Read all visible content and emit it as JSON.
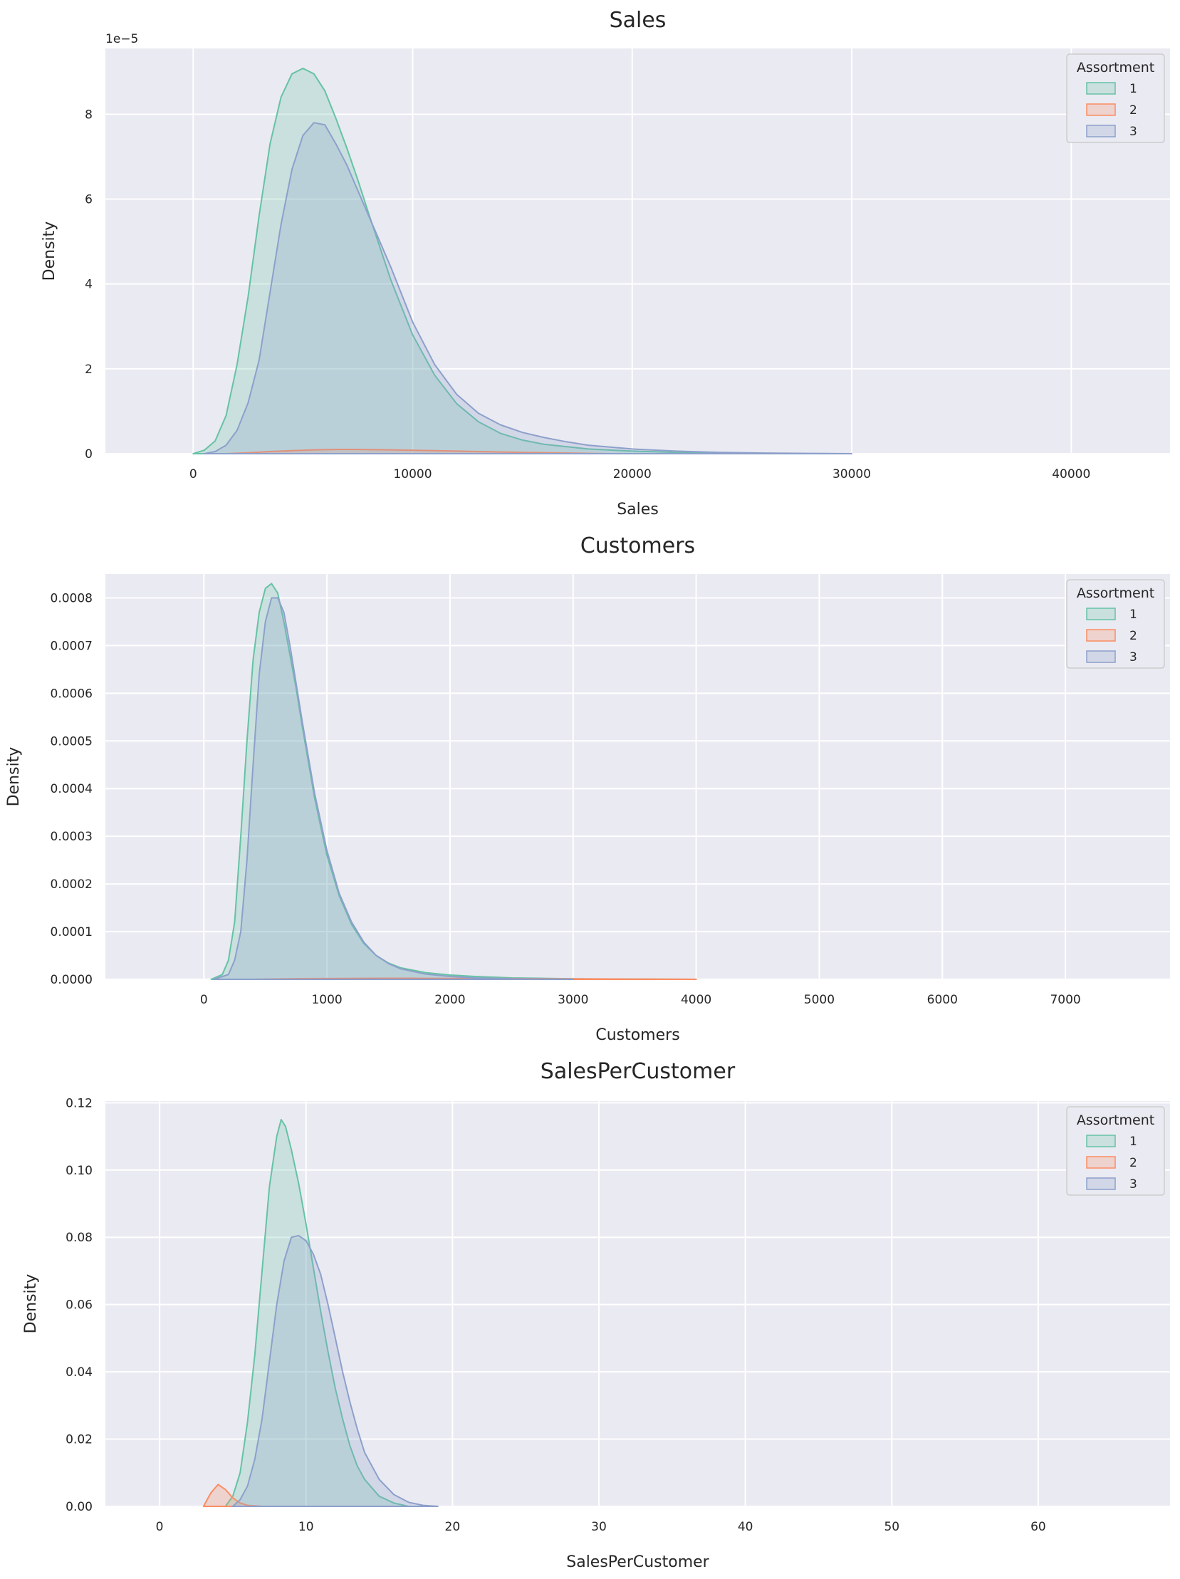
{
  "colors": {
    "1": "#66c2a5",
    "2": "#fc8d62",
    "3": "#8da0cb"
  },
  "chart_data": [
    {
      "type": "area",
      "title": "Sales",
      "xlabel": "Sales",
      "ylabel": "Density",
      "y_offset_label": "1e−5",
      "xlim": [
        -4000,
        44500
      ],
      "ylim": [
        0,
        9.55
      ],
      "xticks": [
        0,
        10000,
        20000,
        30000,
        40000
      ],
      "yticks": [
        0,
        2,
        4,
        6,
        8
      ],
      "ytick_labels": [
        "0",
        "2",
        "4",
        "6",
        "8"
      ],
      "legend": {
        "title": "Assortment",
        "position": "top-right"
      },
      "series": [
        {
          "name": "1",
          "x": [
            0,
            500,
            1000,
            1500,
            2000,
            2500,
            3000,
            3500,
            4000,
            4500,
            5000,
            5500,
            6000,
            6500,
            7000,
            7500,
            8000,
            9000,
            10000,
            11000,
            12000,
            13000,
            14000,
            15000,
            16000,
            18000,
            20000,
            22000,
            24000,
            26000,
            28000
          ],
          "y": [
            0,
            0.08,
            0.3,
            0.9,
            2.1,
            3.7,
            5.6,
            7.3,
            8.4,
            8.95,
            9.08,
            8.95,
            8.55,
            7.9,
            7.2,
            6.45,
            5.65,
            4.1,
            2.8,
            1.85,
            1.18,
            0.75,
            0.48,
            0.32,
            0.22,
            0.11,
            0.06,
            0.03,
            0.015,
            0.007,
            0
          ]
        },
        {
          "name": "2",
          "x": [
            1500,
            2500,
            3500,
            4500,
            5500,
            6500,
            7500,
            9000,
            11000,
            13000,
            15000,
            17000,
            19000
          ],
          "y": [
            0,
            0.02,
            0.05,
            0.07,
            0.09,
            0.1,
            0.1,
            0.09,
            0.07,
            0.05,
            0.03,
            0.015,
            0
          ]
        },
        {
          "name": "3",
          "x": [
            500,
            1000,
            1500,
            2000,
            2500,
            3000,
            3500,
            4000,
            4500,
            5000,
            5500,
            6000,
            6500,
            7000,
            7500,
            8000,
            9000,
            10000,
            11000,
            12000,
            13000,
            14000,
            15000,
            16000,
            17000,
            18000,
            20000,
            22000,
            24000,
            26000,
            28000,
            30000
          ],
          "y": [
            0,
            0.05,
            0.2,
            0.55,
            1.2,
            2.2,
            3.8,
            5.4,
            6.7,
            7.5,
            7.8,
            7.75,
            7.3,
            6.8,
            6.2,
            5.6,
            4.4,
            3.1,
            2.1,
            1.4,
            0.95,
            0.68,
            0.5,
            0.38,
            0.28,
            0.2,
            0.11,
            0.06,
            0.03,
            0.015,
            0.006,
            0
          ]
        }
      ]
    },
    {
      "type": "area",
      "title": "Customers",
      "xlabel": "Customers",
      "ylabel": "Density",
      "xlim": [
        -800,
        7850
      ],
      "ylim": [
        0,
        0.00085
      ],
      "xticks": [
        0,
        1000,
        2000,
        3000,
        4000,
        5000,
        6000,
        7000
      ],
      "yticks": [
        0,
        0.0001,
        0.0002,
        0.0003,
        0.0004,
        0.0005,
        0.0006,
        0.0007,
        0.0008
      ],
      "ytick_labels": [
        "0.0000",
        "0.0001",
        "0.0002",
        "0.0003",
        "0.0004",
        "0.0005",
        "0.0006",
        "0.0007",
        "0.0008"
      ],
      "legend": {
        "title": "Assortment",
        "position": "top-right"
      },
      "series": [
        {
          "name": "1",
          "x": [
            60,
            150,
            200,
            250,
            300,
            350,
            400,
            450,
            500,
            550,
            600,
            650,
            700,
            750,
            800,
            900,
            1000,
            1100,
            1200,
            1300,
            1400,
            1500,
            1600,
            1800,
            2000,
            2200,
            2500,
            3000,
            3500,
            4000
          ],
          "y": [
            0,
            1e-05,
            4e-05,
            0.00012,
            0.0003,
            0.0005,
            0.00067,
            0.00077,
            0.00082,
            0.00083,
            0.00081,
            0.00075,
            0.00068,
            0.00061,
            0.00053,
            0.00038,
            0.00026,
            0.000175,
            0.000115,
            7.5e-05,
            5e-05,
            3.4e-05,
            2.4e-05,
            1.4e-05,
            9e-06,
            6e-06,
            3e-06,
            1.2e-06,
            5e-07,
            0
          ]
        },
        {
          "name": "2",
          "x": [
            400,
            800,
            1200,
            1600,
            2000,
            2400,
            2800,
            3200,
            3600,
            4000
          ],
          "y": [
            0,
            1.5e-06,
            2e-06,
            2.2e-06,
            2e-06,
            1.7e-06,
            1.2e-06,
            7e-07,
            3e-07,
            0
          ]
        },
        {
          "name": "3",
          "x": [
            80,
            200,
            250,
            300,
            350,
            400,
            450,
            500,
            550,
            600,
            650,
            700,
            750,
            800,
            900,
            1000,
            1100,
            1200,
            1300,
            1400,
            1500,
            1600,
            1800,
            2000,
            2200,
            2500,
            3000
          ],
          "y": [
            0,
            1e-05,
            4e-05,
            0.0001,
            0.00025,
            0.00045,
            0.00064,
            0.00075,
            0.0008,
            0.0008,
            0.00077,
            0.0007,
            0.00062,
            0.00054,
            0.00039,
            0.00027,
            0.00018,
            0.00012,
            7.8e-05,
            5e-05,
            3.3e-05,
            2.2e-05,
            1.1e-05,
            6e-06,
            3e-06,
            1.2e-06,
            0
          ]
        }
      ]
    },
    {
      "type": "area",
      "title": "SalesPerCustomer",
      "xlabel": "SalesPerCustomer",
      "ylabel": "Density",
      "xlim": [
        -3.7,
        69.0
      ],
      "ylim": [
        0,
        0.1205
      ],
      "xticks": [
        0,
        10,
        20,
        30,
        40,
        50,
        60
      ],
      "yticks": [
        0,
        0.02,
        0.04,
        0.06,
        0.08,
        0.1,
        0.12
      ],
      "ytick_labels": [
        "0.00",
        "0.02",
        "0.04",
        "0.06",
        "0.08",
        "0.10",
        "0.12"
      ],
      "legend": {
        "title": "Assortment",
        "position": "top-right"
      },
      "series": [
        {
          "name": "1",
          "x": [
            4.5,
            5,
            5.5,
            6,
            6.5,
            7,
            7.5,
            8,
            8.3,
            8.6,
            9,
            9.5,
            10,
            10.5,
            11,
            11.5,
            12,
            12.5,
            13,
            13.5,
            14,
            15,
            16,
            17
          ],
          "y": [
            0,
            0.003,
            0.01,
            0.025,
            0.045,
            0.07,
            0.095,
            0.11,
            0.115,
            0.113,
            0.106,
            0.096,
            0.084,
            0.071,
            0.058,
            0.046,
            0.035,
            0.026,
            0.018,
            0.012,
            0.008,
            0.003,
            0.001,
            0
          ]
        },
        {
          "name": "2",
          "x": [
            3,
            3.5,
            4,
            4.5,
            5,
            5.5,
            6,
            7
          ],
          "y": [
            0,
            0.004,
            0.0065,
            0.005,
            0.0025,
            0.001,
            0.0003,
            0
          ]
        },
        {
          "name": "3",
          "x": [
            5,
            5.5,
            6,
            6.5,
            7,
            7.5,
            8,
            8.5,
            9,
            9.5,
            10,
            10.5,
            11,
            11.5,
            12,
            12.5,
            13,
            13.5,
            14,
            15,
            16,
            17,
            18,
            19
          ],
          "y": [
            0,
            0.002,
            0.006,
            0.014,
            0.026,
            0.043,
            0.06,
            0.073,
            0.08,
            0.0805,
            0.079,
            0.075,
            0.069,
            0.06,
            0.05,
            0.04,
            0.031,
            0.023,
            0.016,
            0.008,
            0.0035,
            0.0012,
            0.0003,
            0
          ]
        }
      ]
    }
  ]
}
